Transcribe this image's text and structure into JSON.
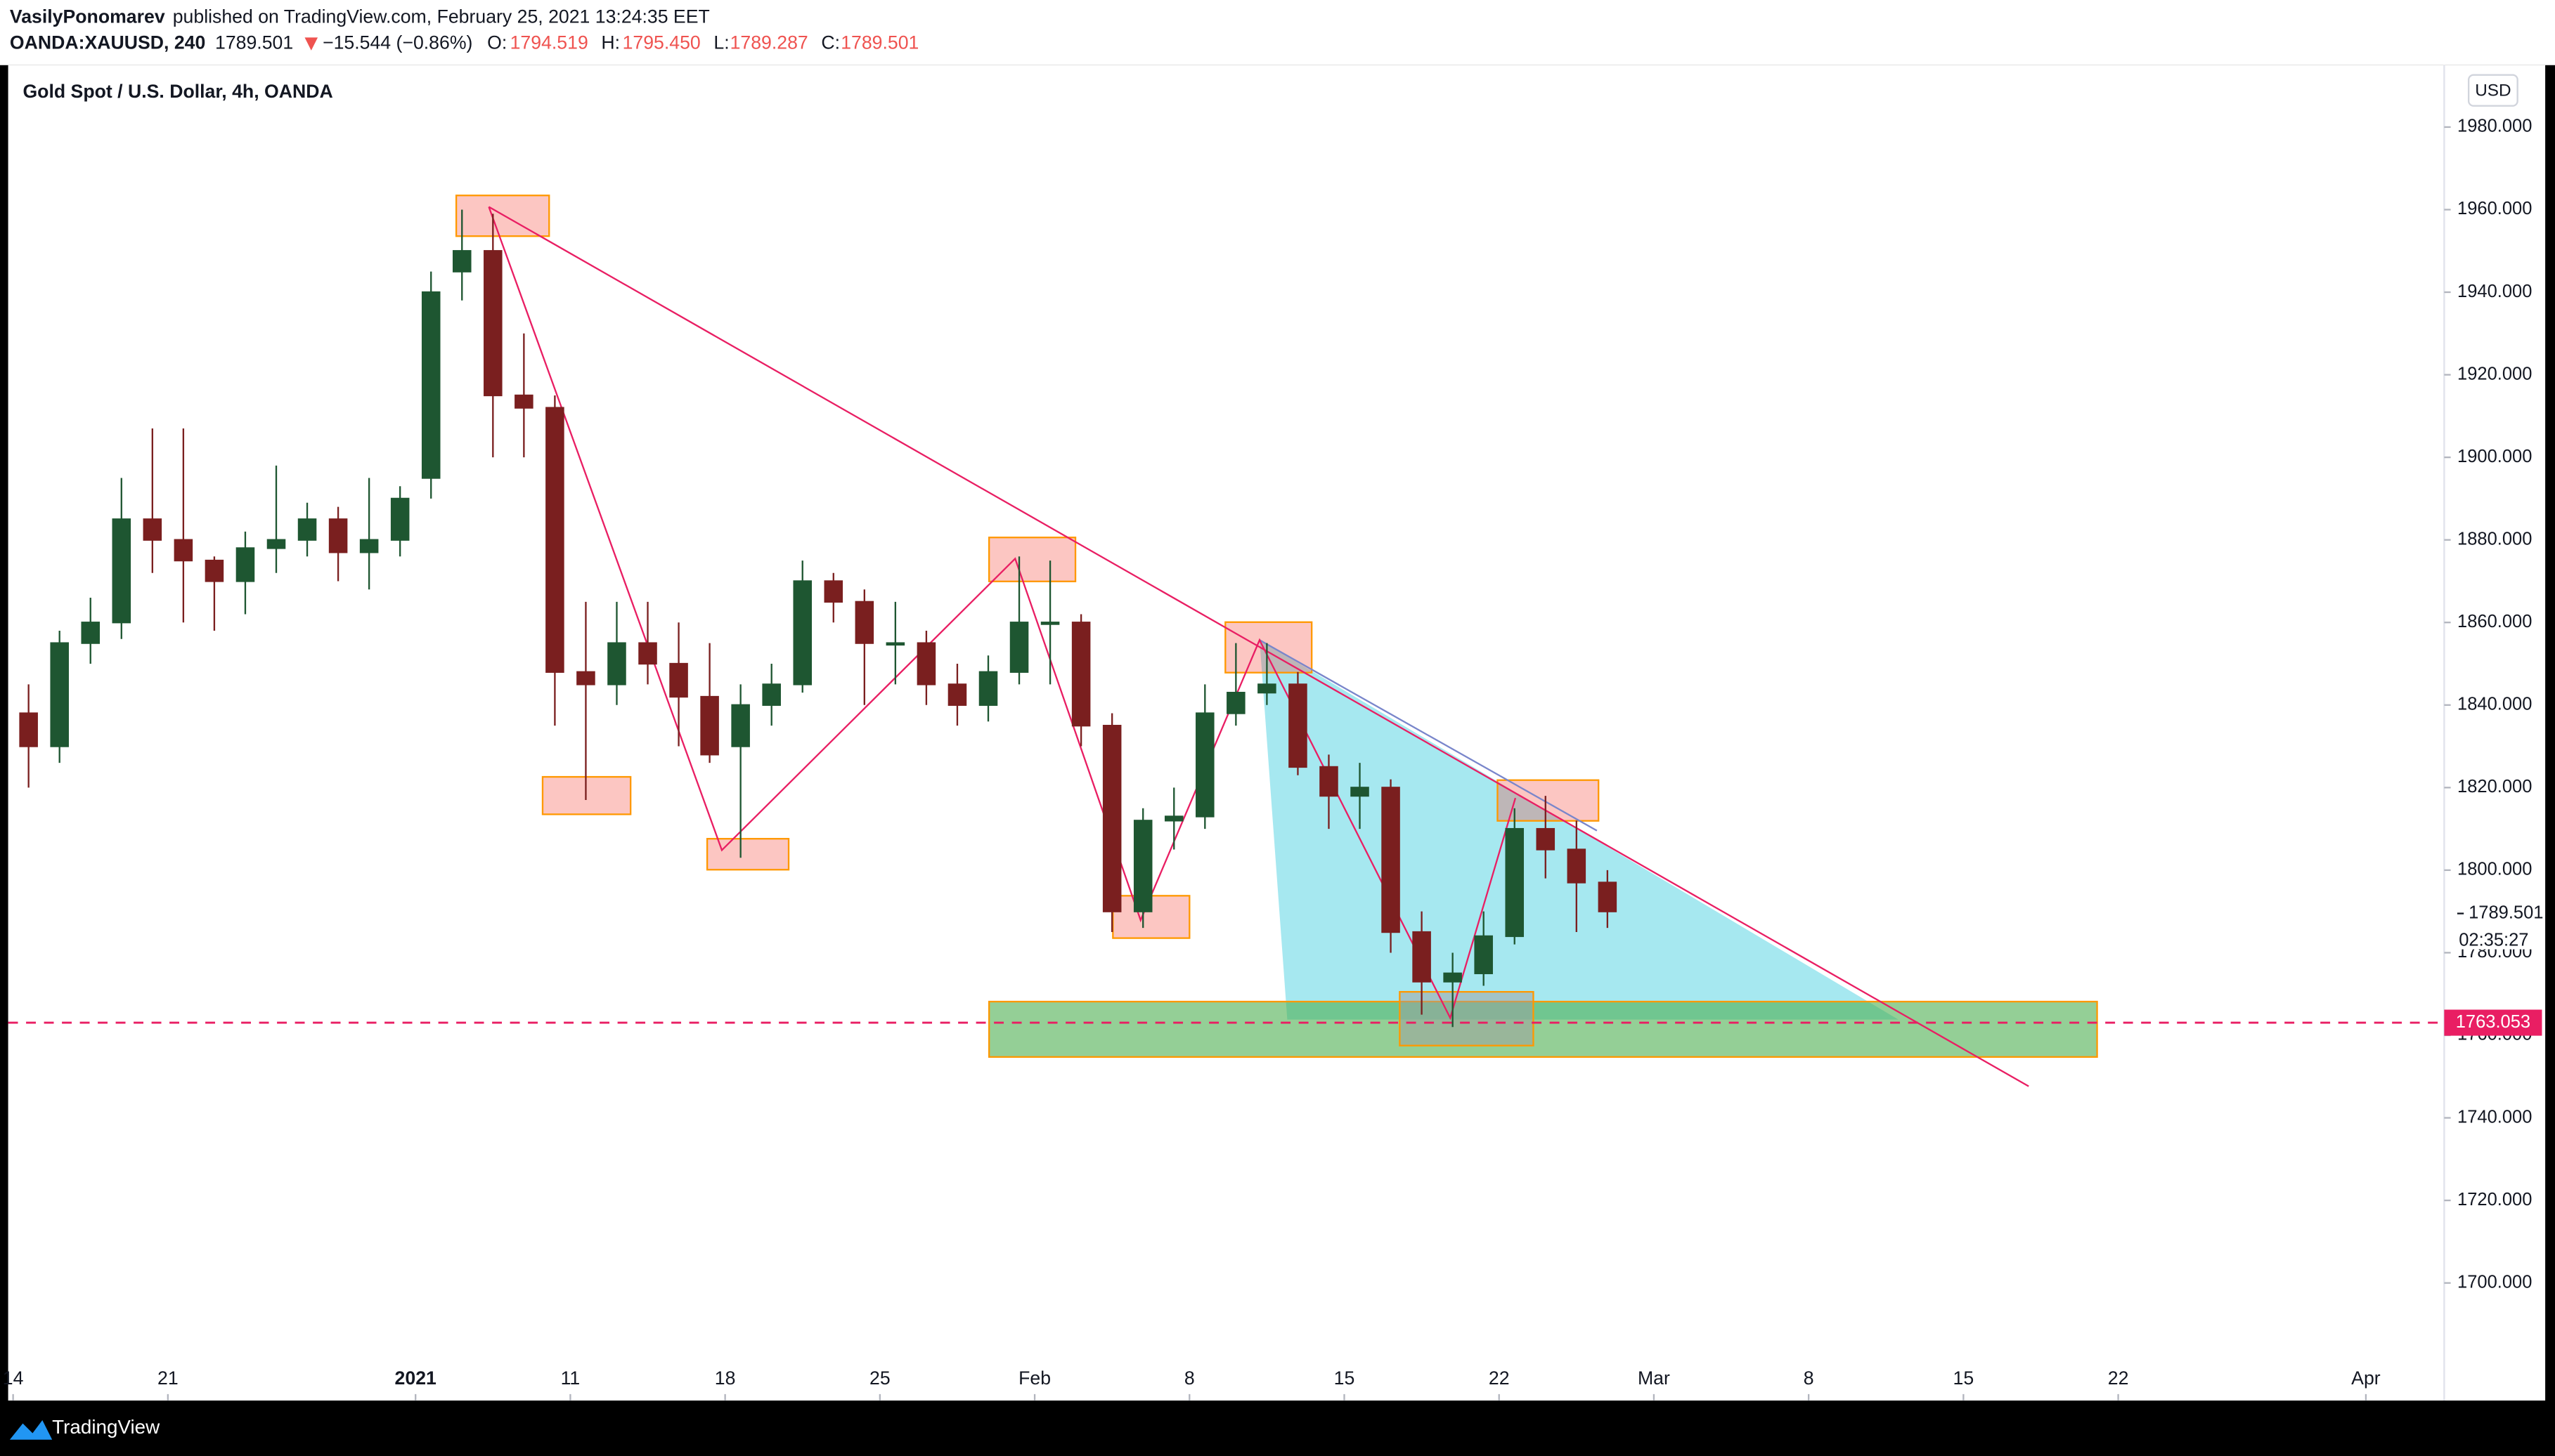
{
  "header": {
    "author": "VasilyPonomarev",
    "published": "published on TradingView.com, February 25, 2021 13:24:35 EET",
    "symbol": "OANDA:XAUUSD, 240",
    "price": "1789.501",
    "change": "−15.544 (−0.86%)",
    "o_label": "O:",
    "o": "1794.519",
    "h_label": "H:",
    "h": "1795.450",
    "l_label": "L:",
    "l": "1789.287",
    "c_label": "C:",
    "c": "1789.501"
  },
  "currency": "USD",
  "footer": "TradingView",
  "chart_data": {
    "type": "candlestick",
    "title": "Gold Spot / U.S. Dollar, 4h, OANDA",
    "up_color": "#1e5631",
    "down_color": "#7a1f1f",
    "x": [
      0.5,
      1.5,
      2.5,
      3.5,
      4.5,
      5.5,
      6.5,
      7.5,
      8.5,
      9.5,
      10.5,
      11.5,
      12.5,
      13.5,
      14.5,
      15.5,
      16.5,
      17.5,
      18.5,
      19.5,
      20.5,
      21.5,
      22.5,
      23.5,
      24.5,
      25.5,
      26.5,
      27.5,
      28.5,
      29.5,
      30.5,
      31.5,
      32.5,
      33.5,
      34.5,
      35.5,
      36.5,
      37.5,
      38.5,
      39.5,
      40.5,
      41.5,
      42.5,
      43.5,
      44.5,
      45.5,
      46.5,
      47.5,
      48.5,
      49.5,
      50.5,
      51.5
    ],
    "open": [
      1838,
      1830,
      1855,
      1860,
      1885,
      1880,
      1875,
      1870,
      1878,
      1880,
      1885,
      1877,
      1880,
      1895,
      1945,
      1950,
      1915,
      1912,
      1848,
      1845,
      1855,
      1850,
      1842,
      1830,
      1840,
      1845,
      1870,
      1865,
      1855,
      1855,
      1845,
      1840,
      1848,
      1860,
      1860,
      1835,
      1790,
      1812,
      1813,
      1838,
      1843,
      1845,
      1825,
      1818,
      1820,
      1785,
      1773,
      1775,
      1784,
      1810,
      1805,
      1797
    ],
    "high": [
      1845,
      1858,
      1866,
      1895,
      1907,
      1907,
      1876,
      1882,
      1898,
      1889,
      1888,
      1895,
      1893,
      1945,
      1960,
      1959,
      1930,
      1915,
      1865,
      1865,
      1865,
      1860,
      1855,
      1845,
      1850,
      1875,
      1872,
      1868,
      1865,
      1858,
      1850,
      1852,
      1876,
      1875,
      1862,
      1838,
      1815,
      1820,
      1845,
      1855,
      1855,
      1848,
      1828,
      1826,
      1822,
      1790,
      1780,
      1790,
      1815,
      1818,
      1812,
      1800
    ],
    "low": [
      1820,
      1826,
      1850,
      1856,
      1872,
      1860,
      1858,
      1862,
      1872,
      1876,
      1870,
      1868,
      1876,
      1890,
      1938,
      1900,
      1900,
      1835,
      1817,
      1840,
      1845,
      1830,
      1826,
      1803,
      1835,
      1843,
      1860,
      1840,
      1845,
      1840,
      1835,
      1836,
      1845,
      1845,
      1830,
      1785,
      1786,
      1805,
      1810,
      1835,
      1840,
      1823,
      1810,
      1810,
      1780,
      1765,
      1762,
      1772,
      1782,
      1798,
      1785,
      1786
    ],
    "close": [
      1830,
      1855,
      1860,
      1885,
      1880,
      1875,
      1870,
      1878,
      1880,
      1885,
      1877,
      1880,
      1890,
      1940,
      1950,
      1915,
      1912,
      1848,
      1845,
      1855,
      1850,
      1842,
      1828,
      1840,
      1845,
      1870,
      1865,
      1855,
      1855,
      1845,
      1840,
      1848,
      1860,
      1860,
      1835,
      1790,
      1812,
      1813,
      1838,
      1843,
      1845,
      1825,
      1818,
      1820,
      1785,
      1773,
      1775,
      1784,
      1810,
      1805,
      1797,
      1790
    ],
    "xlim": [
      -0.16,
      78.53
    ],
    "xticks": [
      {
        "value": 0,
        "label": "14"
      },
      {
        "value": 5,
        "label": "21"
      },
      {
        "value": 13,
        "label": "2021"
      },
      {
        "value": 18,
        "label": "11"
      },
      {
        "value": 23,
        "label": "18"
      },
      {
        "value": 28,
        "label": "25"
      },
      {
        "value": 33,
        "label": "Feb"
      },
      {
        "value": 38,
        "label": "8"
      },
      {
        "value": 43,
        "label": "15"
      },
      {
        "value": 48,
        "label": "22"
      },
      {
        "value": 53,
        "label": "Mar"
      },
      {
        "value": 58,
        "label": "8"
      },
      {
        "value": 63,
        "label": "15"
      },
      {
        "value": 68,
        "label": "22"
      },
      {
        "value": 76,
        "label": "Apr"
      }
    ],
    "ylim": [
      1671.5,
      1995
    ],
    "yticks": [
      {
        "value": 1700,
        "label": "1700.000"
      },
      {
        "value": 1720,
        "label": "1720.000"
      },
      {
        "value": 1740,
        "label": "1740.000"
      },
      {
        "value": 1760,
        "label": "1760.000"
      },
      {
        "value": 1780,
        "label": "1780.000"
      },
      {
        "value": 1800,
        "label": "1800.000"
      },
      {
        "value": 1820,
        "label": "1820.000"
      },
      {
        "value": 1840,
        "label": "1840.000"
      },
      {
        "value": 1860,
        "label": "1860.000"
      },
      {
        "value": 1880,
        "label": "1880.000"
      },
      {
        "value": 1900,
        "label": "1900.000"
      },
      {
        "value": 1920,
        "label": "1920.000"
      },
      {
        "value": 1940,
        "label": "1940.000"
      },
      {
        "value": 1960,
        "label": "1960.000"
      },
      {
        "value": 1980,
        "label": "1980.000"
      }
    ],
    "last_price": 1789.501,
    "countdown": "02:35:27",
    "hline": 1763.053,
    "hline_color": "#e91e63"
  }
}
